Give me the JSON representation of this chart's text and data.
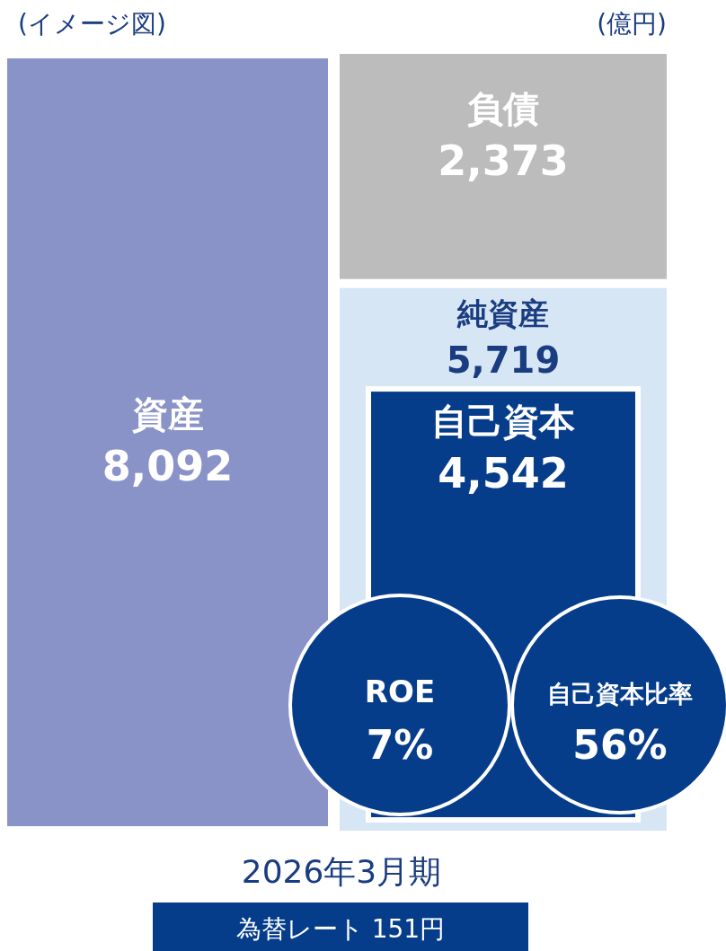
{
  "chart_data": {
    "type": "other",
    "title": "2026年3月期",
    "subtitle": "為替レート 151円",
    "annotations": [
      "(イメージ図)",
      "(億円)"
    ],
    "series": [
      {
        "name": "資産",
        "color": "#8a93c8",
        "values": [
          8092
        ],
        "value_labels": [
          "8,092"
        ]
      },
      {
        "name": "負債",
        "color": "#bcbcbc",
        "values": [
          2373
        ],
        "value_labels": [
          "2,373"
        ]
      },
      {
        "name": "純資産",
        "color": "#d6e6f5",
        "values": [
          5719
        ],
        "value_labels": [
          "5,719"
        ]
      },
      {
        "name": "自己資本",
        "color": "#063d8b",
        "values": [
          4542
        ],
        "value_labels": [
          "4,542"
        ]
      },
      {
        "name": "ROE",
        "color": "#063d8b",
        "values": [
          7
        ],
        "value_labels": [
          "7%"
        ]
      },
      {
        "name": "自己資本比率",
        "color": "#063d8b",
        "values": [
          56
        ],
        "value_labels": [
          "56%"
        ]
      }
    ]
  }
}
